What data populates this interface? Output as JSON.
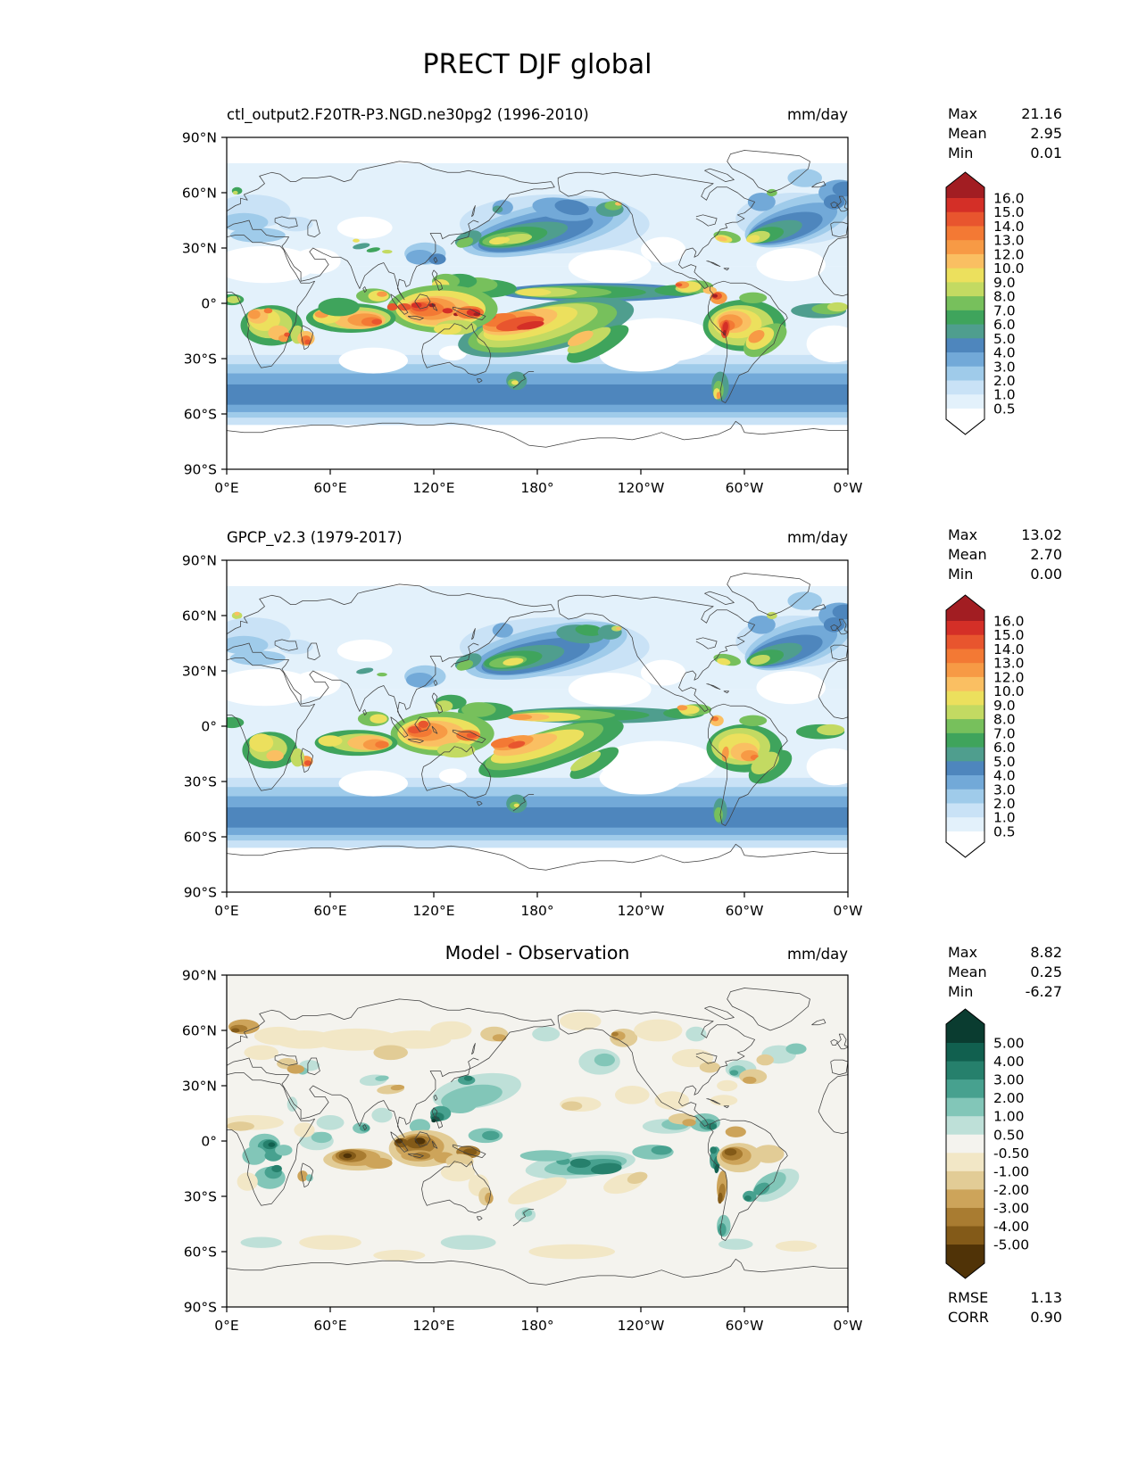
{
  "figure": {
    "title": "PRECT DJF global",
    "background": "#ffffff"
  },
  "stats_labels": {
    "max": "Max",
    "mean": "Mean",
    "min": "Min",
    "rmse": "RMSE",
    "corr": "CORR"
  },
  "panels": [
    {
      "id": "model",
      "title": "ctl_output2.F20TR-P3.NGD.ne30pg2 (1996-2010)",
      "units": "mm/day",
      "stats": {
        "max": "21.16",
        "mean": "2.95",
        "min": "0.01"
      }
    },
    {
      "id": "obs",
      "title": "GPCP_v2.3 (1979-2017)",
      "units": "mm/day",
      "stats": {
        "max": "13.02",
        "mean": "2.70",
        "min": "0.00"
      }
    },
    {
      "id": "diff",
      "title": "Model - Observation",
      "units": "mm/day",
      "stats": {
        "max": "8.82",
        "mean": "0.25",
        "min": "-6.27"
      },
      "rmse": "1.13",
      "corr": "0.90"
    }
  ],
  "axes": {
    "lat_labels": [
      "90°N",
      "60°N",
      "30°N",
      "0°",
      "30°S",
      "60°S",
      "90°S"
    ],
    "lon_labels": [
      "0°E",
      "60°E",
      "120°E",
      "180°",
      "120°W",
      "60°W",
      "0°W"
    ]
  },
  "colorbars": {
    "precip": {
      "tick_labels": [
        "16.0",
        "15.0",
        "14.0",
        "13.0",
        "12.0",
        "10.0",
        "9.0",
        "8.0",
        "7.0",
        "6.0",
        "5.0",
        "4.0",
        "3.0",
        "2.0",
        "1.0",
        "0.5"
      ],
      "colors_low_to_high": [
        "#e3f1fb",
        "#c9e2f6",
        "#9fcbea",
        "#72a9d8",
        "#4e86bd",
        "#4f9e8e",
        "#3fa45c",
        "#77c05c",
        "#c3da62",
        "#ece05d",
        "#fabf62",
        "#f79a45",
        "#f37934",
        "#e8552e",
        "#d42f27"
      ],
      "over": "#a21d22",
      "under": "#ffffff"
    },
    "diff": {
      "tick_labels": [
        "5.00",
        "4.00",
        "3.00",
        "2.00",
        "1.00",
        "0.50",
        "-0.50",
        "-1.00",
        "-2.00",
        "-3.00",
        "-4.00",
        "-5.00"
      ],
      "colors_low_to_high": [
        "#835a18",
        "#a97c31",
        "#cda45a",
        "#e2cc96",
        "#f2e7c6",
        "#f4f3ee",
        "#bee0d8",
        "#82c6b8",
        "#47a18f",
        "#26806c",
        "#11604f"
      ],
      "over": "#0a3c30",
      "under": "#503307"
    }
  },
  "chart_data": [
    {
      "type": "heatmap",
      "subtype": "filled-contour-map",
      "title": "ctl_output2.F20TR-P3.NGD.ne30pg2 (1996-2010)",
      "variable": "PRECT",
      "season": "DJF",
      "region": "global",
      "units": "mm/day",
      "projection": "equirectangular, lon 0°E to 0°W (0-360), lat 90°S to 90°N",
      "levels": [
        0.5,
        1,
        2,
        3,
        4,
        5,
        6,
        7,
        8,
        9,
        10,
        12,
        13,
        14,
        15,
        16
      ],
      "stats": {
        "max": 21.16,
        "mean": 2.95,
        "min": 0.01
      }
    },
    {
      "type": "heatmap",
      "subtype": "filled-contour-map",
      "title": "GPCP_v2.3 (1979-2017)",
      "variable": "PRECT",
      "season": "DJF",
      "region": "global",
      "units": "mm/day",
      "projection": "equirectangular, lon 0°E to 0°W (0-360), lat 90°S to 90°N",
      "levels": [
        0.5,
        1,
        2,
        3,
        4,
        5,
        6,
        7,
        8,
        9,
        10,
        12,
        13,
        14,
        15,
        16
      ],
      "stats": {
        "max": 13.02,
        "mean": 2.7,
        "min": 0.0
      }
    },
    {
      "type": "heatmap",
      "subtype": "filled-contour-map",
      "title": "Model - Observation",
      "variable": "PRECT difference",
      "season": "DJF",
      "region": "global",
      "units": "mm/day",
      "projection": "equirectangular, lon 0°E to 0°W (0-360), lat 90°S to 90°N",
      "levels": [
        -5,
        -4,
        -3,
        -2,
        -1,
        -0.5,
        0.5,
        1,
        2,
        3,
        4,
        5
      ],
      "stats": {
        "max": 8.82,
        "mean": 0.25,
        "min": -6.27
      },
      "rmse": 1.13,
      "corr": 0.9
    }
  ]
}
